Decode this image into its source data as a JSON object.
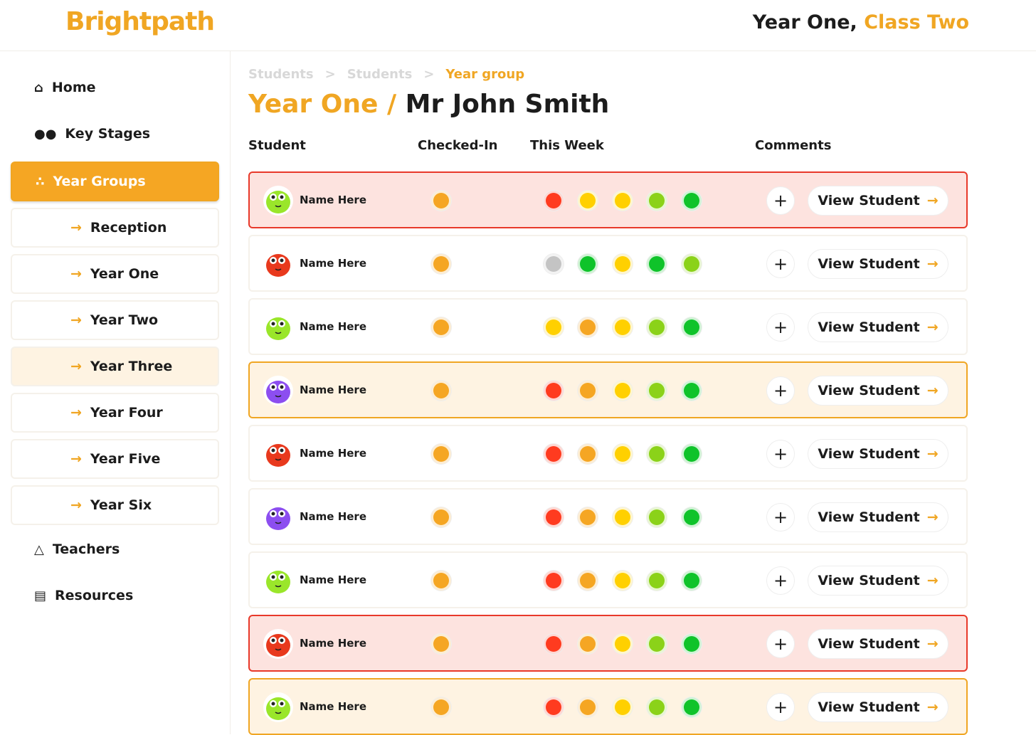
{
  "header": {
    "logo": "Brightpath",
    "class_prefix": "Year One,",
    "class_name": "Class Two"
  },
  "sidebar": {
    "top": [
      "Home",
      "Key Stages"
    ],
    "active": "Year Groups",
    "sub": [
      "Reception",
      "Year One",
      "Year Two",
      "Year Three",
      "Year Four",
      "Year Five",
      "Year Six"
    ],
    "bottom": [
      "Teachers",
      "Resources"
    ]
  },
  "breadcrumb": [
    "Students",
    "Students",
    "Year group"
  ],
  "title": {
    "group": "Year One /",
    "teacher": "Mr John Smith"
  },
  "columns": [
    "Student",
    "Checked-In",
    "This Week",
    "Comments"
  ],
  "rows": [
    {
      "name": "Name Here",
      "avatar": "#9ae62a",
      "checked_in": "#f5a623",
      "week": [
        "#ff3b1f",
        "#ffd000",
        "#ffd000",
        "#8bd219",
        "#0fc32a"
      ],
      "background": "#fde3df",
      "border": "#e8392a",
      "action": "View Student"
    },
    {
      "name": "Name Here",
      "avatar": "#e8391d",
      "checked_in": "#f5a623",
      "week": [
        "#c4c4c4",
        "#0fc32a",
        "#ffd000",
        "#0fc32a",
        "#8bd219"
      ],
      "background": "#ffffff",
      "border": "#f5f1ea",
      "action": "View Student"
    },
    {
      "name": "Name Here",
      "avatar": "#9ae62a",
      "checked_in": "#f5a623",
      "week": [
        "#ffd000",
        "#f5a623",
        "#ffd000",
        "#8bd219",
        "#0fc32a"
      ],
      "background": "#ffffff",
      "border": "#f5f1ea",
      "action": "View Student"
    },
    {
      "name": "Name Here",
      "avatar": "#8c4ef0",
      "checked_in": "#f5a623",
      "week": [
        "#ff3b1f",
        "#f5a623",
        "#ffd000",
        "#8bd219",
        "#0fc32a"
      ],
      "background": "#fef3e2",
      "border": "#f0a623",
      "action": "View Student"
    },
    {
      "name": "Name Here",
      "avatar": "#e8391d",
      "checked_in": "#f5a623",
      "week": [
        "#ff3b1f",
        "#f5a623",
        "#ffd000",
        "#8bd219",
        "#0fc32a"
      ],
      "background": "#ffffff",
      "border": "#f5f1ea",
      "action": "View Student"
    },
    {
      "name": "Name Here",
      "avatar": "#8c4ef0",
      "checked_in": "#f5a623",
      "week": [
        "#ff3b1f",
        "#f5a623",
        "#ffd000",
        "#8bd219",
        "#0fc32a"
      ],
      "background": "#ffffff",
      "border": "#f5f1ea",
      "action": "View Student"
    },
    {
      "name": "Name Here",
      "avatar": "#9ae62a",
      "checked_in": "#f5a623",
      "week": [
        "#ff3b1f",
        "#f5a623",
        "#ffd000",
        "#8bd219",
        "#0fc32a"
      ],
      "background": "#ffffff",
      "border": "#f5f1ea",
      "action": "View Student"
    },
    {
      "name": "Name Here",
      "avatar": "#e8391d",
      "checked_in": "#f5a623",
      "week": [
        "#ff3b1f",
        "#f5a623",
        "#ffd000",
        "#8bd219",
        "#0fc32a"
      ],
      "background": "#fde3df",
      "border": "#e8392a",
      "action": "View Student"
    },
    {
      "name": "Name Here",
      "avatar": "#9ae62a",
      "checked_in": "#f5a623",
      "week": [
        "#ff3b1f",
        "#f5a623",
        "#ffd000",
        "#8bd219",
        "#0fc32a"
      ],
      "background": "#fef3e2",
      "border": "#f0a623",
      "action": "View Student"
    }
  ]
}
